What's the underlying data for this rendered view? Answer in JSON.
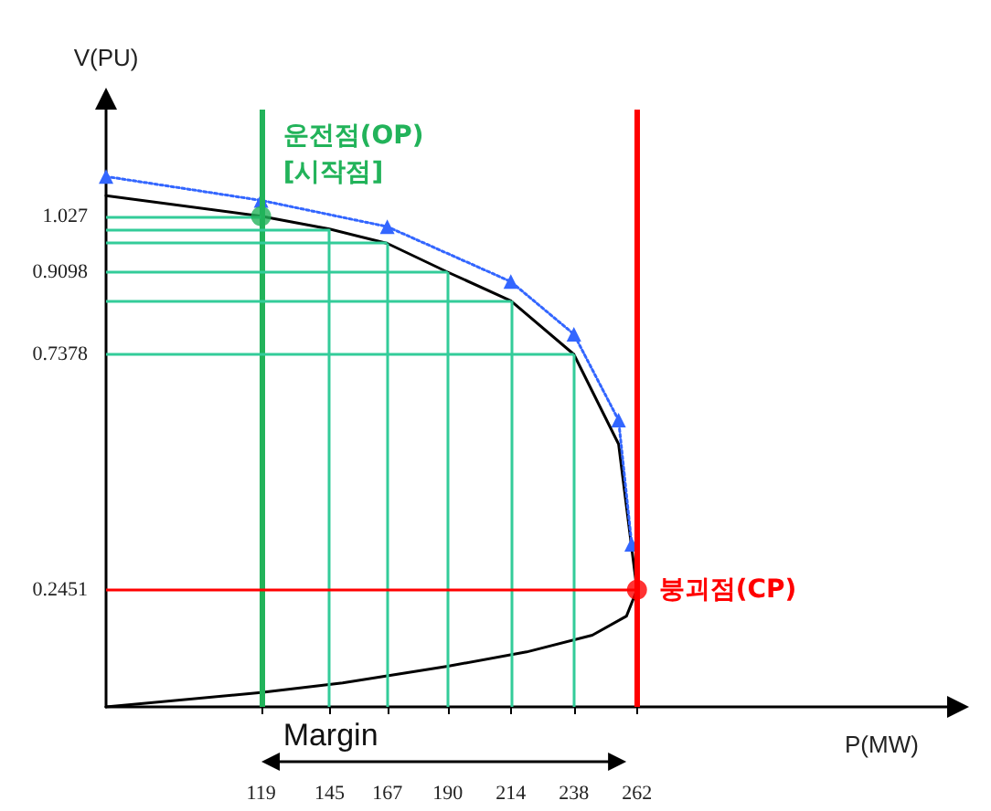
{
  "chart_data": {
    "type": "line",
    "xlabel": "P(MW)",
    "ylabel": "V(PU)",
    "xlim": [
      60,
      380
    ],
    "ylim": [
      0,
      1.25
    ],
    "xticks": [
      119,
      145,
      167,
      190,
      214,
      238,
      262
    ],
    "yticks": [
      0.2451,
      0.7378,
      0.9098,
      1.027
    ],
    "grid": false,
    "series": [
      {
        "color": "#000000",
        "marker": "none",
        "line_style": "solid",
        "x": [
          60,
          119,
          145,
          167,
          190,
          214,
          238,
          255,
          262,
          258,
          245,
          220,
          190,
          150,
          119,
          60
        ],
        "values": [
          1.07,
          1.027,
          1.0,
          0.97,
          0.9098,
          0.85,
          0.7378,
          0.55,
          0.2451,
          0.19,
          0.15,
          0.115,
          0.085,
          0.05,
          0.03,
          0
        ]
      },
      {
        "color": "#3366ff",
        "marker": "triangle",
        "line_style": "dotted",
        "x": [
          60,
          119,
          167,
          214,
          238,
          255,
          260
        ],
        "values": [
          1.11,
          1.06,
          1.005,
          0.89,
          0.78,
          0.6,
          0.34
        ]
      },
      {
        "type": "scatter",
        "marker": "circle",
        "colors": [
          "#22b35a",
          "#ff0000"
        ],
        "x": [
          119,
          262
        ],
        "values": [
          1.027,
          0.2451
        ]
      }
    ],
    "ref_lines": [
      {
        "axis": "x",
        "value": 119,
        "color": "#22b35a"
      },
      {
        "axis": "x",
        "value": 262,
        "color": "#ff0000"
      },
      {
        "axis": "x",
        "value": 145,
        "color": "#33cc99"
      },
      {
        "axis": "x",
        "value": 167,
        "color": "#33cc99"
      },
      {
        "axis": "x",
        "value": 190,
        "color": "#33cc99"
      },
      {
        "axis": "x",
        "value": 214,
        "color": "#33cc99"
      },
      {
        "axis": "x",
        "value": 238,
        "color": "#33cc99"
      },
      {
        "axis": "y",
        "value": 1.027,
        "color": "#33cc99"
      },
      {
        "axis": "y",
        "value": 1.0,
        "color": "#33cc99"
      },
      {
        "axis": "y",
        "value": 0.97,
        "color": "#33cc99"
      },
      {
        "axis": "y",
        "value": 0.9098,
        "color": "#33cc99"
      },
      {
        "axis": "y",
        "value": 0.85,
        "color": "#33cc99"
      },
      {
        "axis": "y",
        "value": 0.7378,
        "color": "#33cc99"
      },
      {
        "axis": "y",
        "value": 0.2451,
        "color": "#ff0000"
      }
    ],
    "annotations": [
      {
        "text": "운전점(OP)\n[시작점]",
        "x": 119,
        "y": 1.027
      },
      {
        "text": "붕괴점(CP)",
        "x": 262,
        "y": 0.2451
      },
      "Margin"
    ]
  }
}
